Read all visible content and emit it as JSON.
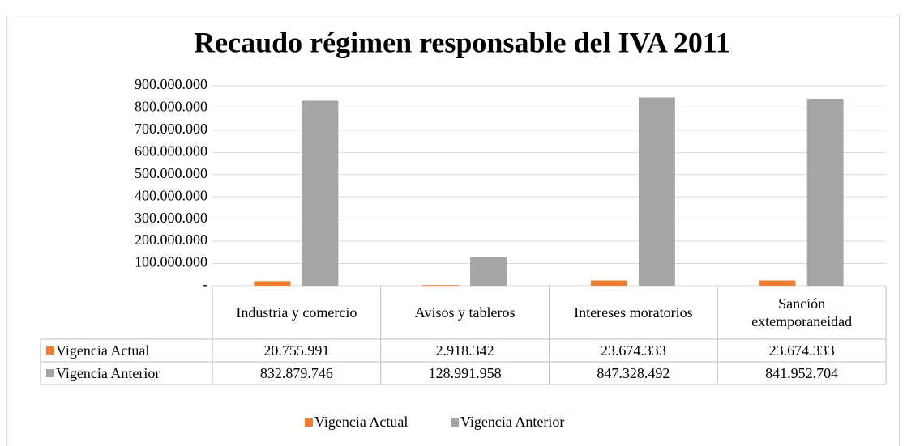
{
  "chart_data": {
    "type": "bar",
    "title": "Recaudo régimen responsable del IVA 2011",
    "categories": [
      "Industria y comercio",
      "Avisos y tableros",
      "Intereses moratorios",
      "Sanción extemporaneidad"
    ],
    "series": [
      {
        "name": "Vigencia Actual",
        "color": "#ed7d31",
        "values": [
          20755991,
          2918342,
          23674333,
          23674333
        ],
        "value_labels": [
          "20.755.991",
          "2.918.342",
          "23.674.333",
          "23.674.333"
        ]
      },
      {
        "name": "Vigencia Anterior",
        "color": "#a5a5a5",
        "values": [
          832879746,
          128991958,
          847328492,
          841952704
        ],
        "value_labels": [
          "832.879.746",
          "128.991.958",
          "847.328.492",
          "841.952.704"
        ]
      }
    ],
    "ylim": [
      0,
      900000000
    ],
    "yticks": [
      {
        "value": 0,
        "label": "-"
      },
      {
        "value": 100000000,
        "label": "100.000.000"
      },
      {
        "value": 200000000,
        "label": "200.000.000"
      },
      {
        "value": 300000000,
        "label": "300.000.000"
      },
      {
        "value": 400000000,
        "label": "400.000.000"
      },
      {
        "value": 500000000,
        "label": "500.000.000"
      },
      {
        "value": 600000000,
        "label": "600.000.000"
      },
      {
        "value": 700000000,
        "label": "700.000.000"
      },
      {
        "value": 800000000,
        "label": "800.000.000"
      },
      {
        "value": 900000000,
        "label": "900.000.000"
      }
    ],
    "grid": true,
    "legend": "bottom"
  }
}
